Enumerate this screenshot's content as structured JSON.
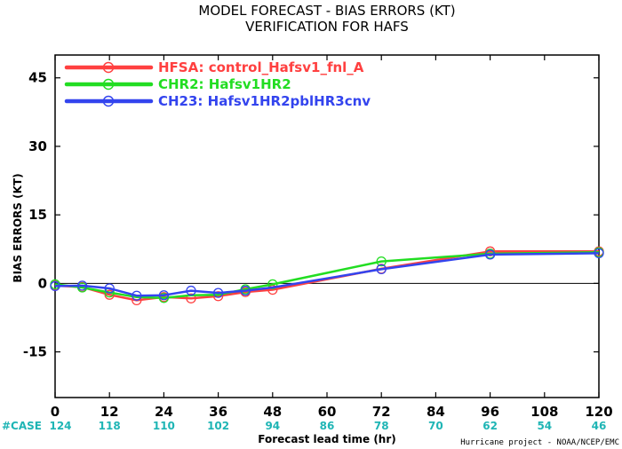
{
  "chart_data": {
    "type": "line",
    "title": "MODEL FORECAST - BIAS ERRORS (KT)",
    "subtitle": "VERIFICATION FOR HAFS",
    "xlabel": "Forecast lead time (hr)",
    "ylabel": "BIAS ERRORS (KT)",
    "xlim": [
      0,
      120
    ],
    "ylim": [
      -25,
      50
    ],
    "x_ticks": [
      0,
      12,
      24,
      36,
      48,
      60,
      72,
      84,
      96,
      108,
      120
    ],
    "y_ticks": [
      45,
      30,
      15,
      0,
      -15
    ],
    "zero_line": true,
    "legend_position": "top-left",
    "case_label": "#CASE",
    "case_counts": [
      124,
      118,
      110,
      102,
      94,
      86,
      78,
      70,
      62,
      54,
      46
    ],
    "case_color": "#1fb5b5",
    "credit": "Hurricane project - NOAA/NCEP/EMC",
    "series": [
      {
        "name": "HFSA: control_Hafsv1_fnl_A",
        "color": "#ff4040",
        "x": [
          0,
          6,
          12,
          18,
          24,
          30,
          36,
          42,
          48,
          72,
          96,
          120
        ],
        "y": [
          -0.5,
          -0.8,
          -2.5,
          -3.7,
          -3.0,
          -3.3,
          -2.8,
          -1.9,
          -1.4,
          3.2,
          7.0,
          7.0
        ],
        "markers_at": [
          0,
          6,
          12,
          18,
          24,
          30,
          36,
          42,
          48,
          72,
          96,
          120
        ]
      },
      {
        "name": "CHR2: Hafsv1HR2",
        "color": "#22dd22",
        "x": [
          0,
          6,
          12,
          18,
          24,
          30,
          36,
          42,
          48,
          72,
          96,
          120
        ],
        "y": [
          -0.2,
          -0.9,
          -2.0,
          -3.0,
          -3.2,
          -2.6,
          -2.5,
          -1.3,
          -0.2,
          4.8,
          6.5,
          6.8
        ],
        "markers_at": [
          0,
          6,
          12,
          24,
          42,
          48,
          72,
          96,
          120
        ]
      },
      {
        "name": "CH23: Hafsv1HR2pblHR3cnv",
        "color": "#3344ee",
        "x": [
          0,
          6,
          12,
          18,
          24,
          30,
          36,
          42,
          48,
          72,
          96,
          120
        ],
        "y": [
          -0.6,
          -0.5,
          -1.1,
          -2.7,
          -2.6,
          -1.6,
          -2.1,
          -1.6,
          -0.9,
          3.1,
          6.3,
          6.6
        ],
        "markers_at": [
          0,
          6,
          12,
          18,
          24,
          30,
          36,
          42,
          72,
          96,
          120
        ]
      }
    ]
  }
}
